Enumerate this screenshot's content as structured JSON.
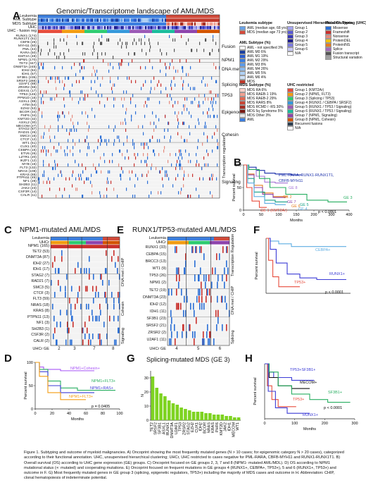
{
  "panelA": {
    "letter": "A",
    "title": "Genomic/Transcriptome landscape of  AML/MDS",
    "topRows": [
      "Leukemia",
      "AML Subtype",
      "MDS Subtype",
      "UHC",
      "UHC - fusion reg"
    ],
    "genes": [
      {
        "g": "RUNX1 (174)",
        "t": "m"
      },
      {
        "g": "RUNX1T1 (51)",
        "t": "f"
      },
      {
        "g": "CBFB (26)",
        "t": "f"
      },
      {
        "g": "MYH11 (50)",
        "t": "f"
      },
      {
        "g": "PML (44)",
        "t": "f"
      },
      {
        "g": "RARA (50)",
        "t": "f"
      },
      {
        "g": "KMT2A (48)",
        "t": "f"
      },
      {
        "g": "NPM1 (170)",
        "t": "n"
      },
      {
        "g": "TET2 (347)",
        "t": "m"
      },
      {
        "g": "DNMT3A (245)",
        "t": "m"
      },
      {
        "g": "IDH2 (84)",
        "t": "m"
      },
      {
        "g": "IDH1 (57)",
        "t": "m"
      },
      {
        "g": "SF3B1 (235)",
        "t": "m"
      },
      {
        "g": "SRSF2 (266)",
        "t": "m"
      },
      {
        "g": "U2AF1 (88)",
        "t": "m"
      },
      {
        "g": "ZRSR2 (59)",
        "t": "m"
      },
      {
        "g": "DDX41 (17)",
        "t": "m"
      },
      {
        "g": "TP53 (146)",
        "t": "m"
      },
      {
        "g": "PPM1D (16)",
        "t": "m"
      },
      {
        "g": "ASXL1 (88)",
        "t": "m"
      },
      {
        "g": "ATM (54)",
        "t": "m"
      },
      {
        "g": "EZH2 (53)",
        "t": "m"
      },
      {
        "g": "BCOR (34)",
        "t": "m"
      },
      {
        "g": "PHF6 (34)",
        "t": "m"
      },
      {
        "g": "KMT2D (32)",
        "t": "m"
      },
      {
        "g": "ASXL2 (30)",
        "t": "m"
      },
      {
        "g": "MECOM (27)",
        "t": "m"
      },
      {
        "g": "STAG2 (87)",
        "t": "m"
      },
      {
        "g": "RAD21 (26)",
        "t": "m"
      },
      {
        "g": "SMC3 (16)",
        "t": "m"
      },
      {
        "g": "CTCF (12)",
        "t": "m"
      },
      {
        "g": "WT1 (51)",
        "t": "m"
      },
      {
        "g": "CUX1 (40)",
        "t": "m"
      },
      {
        "g": "CEBPA (15)",
        "t": "m"
      },
      {
        "g": "ETV6 (26)",
        "t": "m"
      },
      {
        "g": "LZTR1 (20)",
        "t": "m"
      },
      {
        "g": "IKZF1 (12)",
        "t": "m"
      },
      {
        "g": "MYB (16)",
        "t": "m"
      },
      {
        "g": "FLT3 (132)",
        "t": "m"
      },
      {
        "g": "NRAS (108)",
        "t": "m"
      },
      {
        "g": "KRAS (65)",
        "t": "m"
      },
      {
        "g": "PTPN11 (45)",
        "t": "m"
      },
      {
        "g": "NF1 (28)",
        "t": "m"
      },
      {
        "g": "SH2B3 (11)",
        "t": "m"
      },
      {
        "g": "JAK2 (23)",
        "t": "m"
      },
      {
        "g": "CSF3R (14)",
        "t": "m"
      },
      {
        "g": "CALR (11)",
        "t": "m"
      }
    ],
    "groups": [
      "Fusion",
      "NPM1",
      "DNA met",
      "Splicing",
      "TP53",
      "Epigenomic",
      "Cohesin",
      "Transcription regulation",
      "Signaling"
    ]
  },
  "legend": {
    "leukemia": {
      "title": "Leukemia subtype",
      "items": [
        {
          "label": "AML (median age, 68 yrs)",
          "color": "#6aa2e6"
        },
        {
          "label": "MDS (median age 73 yrs)",
          "color": "#d64a3a"
        }
      ]
    },
    "amlSubtype": {
      "title": "AML Subtype (%)",
      "items": [
        {
          "label": "AML - not specified 3%",
          "color": "#f4f4f4"
        },
        {
          "label": "AML M0  6%",
          "color": "#1a3fa0"
        },
        {
          "label": "AML M1  19%",
          "color": "#2c5fd1"
        },
        {
          "label": "AML M2  29%",
          "color": "#3b7ee0"
        },
        {
          "label": "AML M3  8%",
          "color": "#5c9ae8"
        },
        {
          "label": "AML M4  26%",
          "color": "#8bb9ee"
        },
        {
          "label": "AML M5  5%",
          "color": "#afd0f4"
        },
        {
          "label": "AML M6  4%",
          "color": "#cfe2f8"
        },
        {
          "label": "MDS",
          "color": "#c0392b"
        }
      ]
    },
    "mdsSubtype": {
      "title": "MDS Subtype (%)",
      "items": [
        {
          "label": "MDS RA 6%",
          "color": "#f9d0c8"
        },
        {
          "label": "MDS RAEB-1 19%",
          "color": "#f0a090"
        },
        {
          "label": "MDS RAEB-2 29%",
          "color": "#e06a55"
        },
        {
          "label": "MDS RARS 8%",
          "color": "#c94636"
        },
        {
          "label": "MDS RCMD / -RS 30%",
          "color": "#a52d22"
        },
        {
          "label": "MDS 5q Syndrome 5%",
          "color": "#7a1b14"
        },
        {
          "label": "MDS Other 3%",
          "color": "#e8e8e8"
        },
        {
          "label": "AML",
          "color": "#3b7ee0"
        }
      ]
    },
    "uhc": {
      "title": "Unsupervised Hierarchical Clustering (UHC)",
      "items": [
        {
          "label": "Group 1",
          "color": "#a5a5ef"
        },
        {
          "label": "Group 2",
          "color": "#5a5ad6"
        },
        {
          "label": "Group 3",
          "color": "#3939b8"
        },
        {
          "label": "Group 4",
          "color": "#1f1f8c"
        },
        {
          "label": "Group 5",
          "color": "#7c7cdf"
        },
        {
          "label": "Group 6",
          "color": "#c8c8f6"
        },
        {
          "label": "N/A",
          "color": "#ffffff"
        }
      ]
    },
    "mutation": {
      "title": "Mutation Types",
      "items": [
        {
          "label": "Missense",
          "color": "#2b6fd6"
        },
        {
          "label": "Frameshift",
          "color": "#c9302c"
        },
        {
          "label": "Nonsense",
          "color": "#e58b7e"
        },
        {
          "label": "ProteinDEL",
          "color": "#f1c40f"
        },
        {
          "label": "ProteinINS",
          "color": "#e67e22"
        },
        {
          "label": "Splice",
          "color": "#a569bd"
        },
        {
          "label": "Fusion transcript",
          "color": "#555555"
        },
        {
          "label": "Structural variation",
          "color": "#9e9e9e"
        }
      ]
    },
    "uhcRestricted": {
      "title": "UHC restricted",
      "items": [
        {
          "label": "Group 1 (KMT2Ar)",
          "color": "#e74c3c"
        },
        {
          "label": "Group 2 (NPM1, FLT3)",
          "color": "#f39c12"
        },
        {
          "label": "Group 3 (Splicing / TP53)",
          "color": "#2ecc71"
        },
        {
          "label": "Group 4 (RUNX1 / CEBPA / SRSF2)",
          "color": "#3498db"
        },
        {
          "label": "Group 5 (RUNX1 / TP53 / Signaling)",
          "color": "#9b59b6"
        },
        {
          "label": "Group 6 (RUNX1 / TP53 / Signaling)",
          "color": "#1abc9c"
        },
        {
          "label": "Group 7 (NPM1, Signaling)",
          "color": "#8e44ad"
        },
        {
          "label": "Group 8 (NPM1, Cohesin)",
          "color": "#d35400"
        },
        {
          "label": "Recurrent fusions",
          "color": "#2c3e50"
        },
        {
          "label": "N/A",
          "color": "#ffffff"
        }
      ]
    }
  },
  "panelB": {
    "letter": "B",
    "ylabel": "Percent survival",
    "xlabel": "Months",
    "pval": "p < 0.0001",
    "curveLabels": [
      {
        "t": "PML-RARA, RUNX1-RUNX1T1,",
        "c": "#1a2faa"
      },
      {
        "t": "CBFB-MYH11",
        "c": "#1a2faa"
      },
      {
        "t": "GE 8",
        "c": "#a575d6"
      },
      {
        "t": "GE 2",
        "c": "#e67e22"
      },
      {
        "t": "GE 3",
        "c": "#27ae60"
      },
      {
        "t": "GE 7",
        "c": "#8e44ad"
      },
      {
        "t": "GE 5",
        "c": "#16a085"
      },
      {
        "t": "GE 6",
        "c": "#e67e22"
      },
      {
        "t": "GE 4",
        "c": "#5dade2"
      },
      {
        "t": "GE 1 (KMT2Ar)",
        "c": "#e74c3c"
      }
    ],
    "xticks": [
      "0",
      "50",
      "100",
      "150",
      "200",
      "300",
      "400"
    ],
    "yticks": [
      "0",
      "50",
      "100"
    ],
    "chart_data": {
      "type": "line",
      "xlabel": "Months",
      "ylabel": "Percent survival",
      "ylim": [
        0,
        100
      ]
    }
  },
  "panelC": {
    "letter": "C",
    "title": "NPM1-mutated AML/MDS",
    "topRows": [
      "Leukemia",
      "UHCr",
      "NPM1 (165)"
    ],
    "genes": [
      "TET2 (53)",
      "DNMT3A (87)",
      "IDH2 (27)",
      "IDH1 (17)",
      "STAG2 (7)",
      "RAD21 (7)",
      "SMC3 (5)",
      "CTCF (3)",
      "FLT3 (59)",
      "NRAS (18)",
      "KRAS (8)",
      "PTPN11 (13)",
      "NF1 (3)",
      "SH2B3 (1)",
      "CSF3R (2)",
      "CALR (2)"
    ],
    "groups": [
      "DNA met / CHIP",
      "Cohesin",
      "Signaling"
    ],
    "footer": "UHCr GE",
    "footerNums": [
      "2",
      "3",
      "7",
      "8"
    ]
  },
  "panelD": {
    "letter": "D",
    "ylabel": "Percent survival",
    "xlabel": "Months",
    "pval": "p = 0.0405",
    "curveLabels": [
      {
        "t": "NPM1+Cohesin+",
        "c": "#a855f7"
      },
      {
        "t": "NPM1+FLT3+",
        "c": "#27ae60"
      },
      {
        "t": "NPM1+RAS+",
        "c": "#3b3bd6"
      },
      {
        "t": "NPM1+FLT3+",
        "c": "#f39c12"
      }
    ],
    "xticks": [
      "0",
      "20",
      "40",
      "60",
      "80",
      "100"
    ],
    "yticks": [
      "0",
      "50",
      "100"
    ]
  },
  "panelE": {
    "letter": "E",
    "title": "RUNX1/TP53-mutated AML/MDS",
    "topRows": [
      "Leukemia",
      "UHCr"
    ],
    "genes": [
      "RUNX1 (33)",
      "CEBPA (15)",
      "BRCC3 (13)",
      "WT1 (9)",
      "TP53 (26)",
      "NPM1 (2)",
      "TET2 (19)",
      "DNMT3A (23)",
      "IDH2 (12)",
      "IDH1 (11)",
      "SF3B1 (23)",
      "SRSF2 (21)",
      "ZRSR2 (2)",
      "U2AF1 (11)"
    ],
    "groups": [
      "Transcription Regulation",
      "DNA met / CHIP",
      "Splicing"
    ],
    "footer": "UHCr GE",
    "footerNums": [
      "4",
      "5",
      "6"
    ]
  },
  "panelF": {
    "letter": "F",
    "ylabel": "Percent survival",
    "pval": "p < 0.0001",
    "curveLabels": [
      {
        "t": "CEBPA+",
        "c": "#5dade2"
      },
      {
        "t": "RUNX1+",
        "c": "#3b3bd6"
      },
      {
        "t": "TP53+",
        "c": "#e74c3c"
      }
    ]
  },
  "panelG": {
    "letter": "G",
    "title": "Splicing-mutated MDS (GE 3)",
    "ylabel": "N",
    "chart_data": {
      "type": "bar",
      "categories": [
        "TET2",
        "SRSF2",
        "SF3B1",
        "ASXL1",
        "RUNX1",
        "DNMT3A",
        "U2AF1",
        "TP53",
        "ZRSR2",
        "STAG2",
        "EZH2",
        "CUX1",
        "IDH2",
        "BCOR",
        "NRAS",
        "KRAS",
        "PHF6",
        "KMT2D",
        "JAK2",
        "IDH1",
        "MECOM",
        "WT1"
      ],
      "values": [
        31,
        23,
        19,
        17,
        14,
        12,
        11,
        9,
        8,
        7,
        6,
        6,
        6,
        5,
        5,
        4,
        4,
        4,
        3,
        3,
        2,
        2
      ],
      "ylabel": "N",
      "ylim": [
        0,
        35
      ]
    },
    "yticks": [
      "0",
      "10",
      "20",
      "30"
    ]
  },
  "panelH": {
    "letter": "H",
    "ylabel": "Percent survival",
    "xlabel": "Months",
    "pval": "p < 0.0001",
    "curveLabels": [
      {
        "t": "TP53+SF3B1+",
        "c": "#3b3bd6"
      },
      {
        "t": "MECOM+",
        "c": "#111111"
      },
      {
        "t": "SF3B1+",
        "c": "#27ae60"
      },
      {
        "t": "TP53+",
        "c": "#e74c3c"
      },
      {
        "t": "RUNX1+",
        "c": "#3b3bd6"
      }
    ],
    "xticks": [
      "0",
      "100",
      "200",
      "300"
    ]
  },
  "caption": "Figure 1. Subtyping and outcome of myeloid malignancies. A) Oncoprint showing the most frequently mutated genes (N > 10 cases; for epigenomic category N > 20 cases), categorized according to their functional annotation. UHC, unsupervised hierarchical clustering; UHCr, UHC restricted to cases negative for PML-RARA, CBFB-MYH11 and RUNX1-RUNX1T1. B) Overall survival (OS) according to UHC gene expression (GE) groups. C) Oncoprint focused on GE groups 2, 3, 7 and 8 (NPM1- mutated AML/MDL). D) OS according to NPM1 mutational status (+: mutated) and cooperating mutations. E) Oncoprint focused on frequent mutations in GE groups 4 (RUNX1+, CEBPA+, TP53+), 5 and 6 (RUNX1+, TP53+) and outcome in F. G) Most frequently mutated genes in GE group 3 (splicing, epigenetic regulators, TP53+) including the majority of MDS cases and outcome in H. Abbreviation: CHIP, clonal hematopoiesis of indeterminate potential."
}
